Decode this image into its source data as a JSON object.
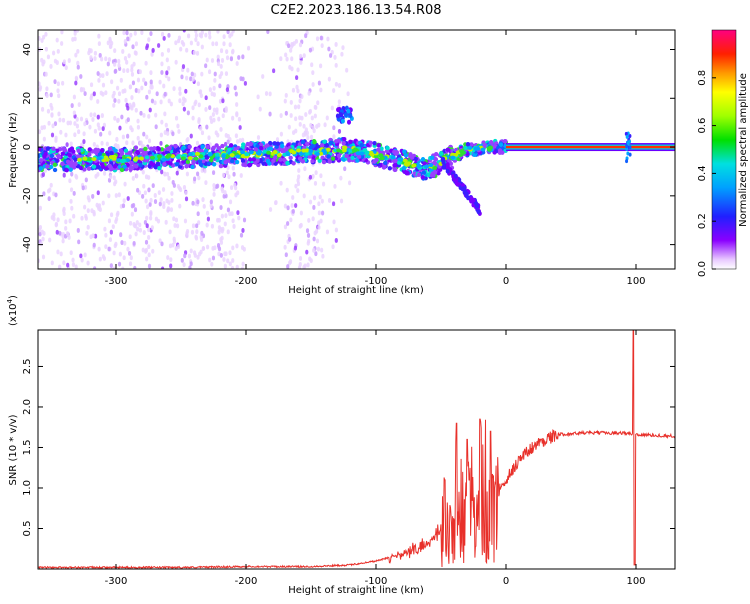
{
  "title": "C2E2.2023.186.13.54.R08",
  "chart_data": [
    {
      "type": "heatmap",
      "xlabel": "Height of straight line (km)",
      "ylabel": "Frequency (Hz)",
      "xlim": [
        -360,
        130
      ],
      "ylim": [
        -50,
        48
      ],
      "xticks": [
        -300,
        -200,
        -100,
        0,
        100
      ],
      "xtick_labels": [
        "-300",
        "-200",
        "-100",
        "0",
        "100"
      ],
      "yticks": [
        -40,
        -20,
        0,
        20,
        40
      ],
      "ytick_labels": [
        "-40",
        "-20",
        "0",
        "20",
        "40"
      ],
      "colorbar": {
        "label": "Normalized spectral amplitude",
        "range": [
          0,
          1
        ],
        "ticks": [
          0.0,
          0.2,
          0.4,
          0.6,
          0.8
        ],
        "tick_labels": [
          "0.0",
          "0.2",
          "0.4",
          "0.6",
          "0.8"
        ],
        "colormap": "rainbow"
      },
      "ridge": [
        {
          "x": -360,
          "y": -5
        },
        {
          "x": -300,
          "y": -5
        },
        {
          "x": -250,
          "y": -4
        },
        {
          "x": -200,
          "y": -3
        },
        {
          "x": -150,
          "y": -2
        },
        {
          "x": -120,
          "y": -1
        },
        {
          "x": -100,
          "y": -3
        },
        {
          "x": -80,
          "y": -6
        },
        {
          "x": -60,
          "y": -9
        },
        {
          "x": -45,
          "y": -5
        },
        {
          "x": -30,
          "y": -1
        },
        {
          "x": -10,
          "y": 0
        },
        {
          "x": 0,
          "y": 0
        },
        {
          "x": 130,
          "y": 0
        }
      ]
    },
    {
      "type": "line",
      "xlabel": "Height of straight line (km)",
      "ylabel": "SNR (10 * v/v)",
      "multiplier": "(x10",
      "multiplier_exp": "4",
      "multiplier_close": ")",
      "xlim": [
        -360,
        130
      ],
      "ylim": [
        0,
        2.95
      ],
      "xticks": [
        -300,
        -200,
        -100,
        0,
        100
      ],
      "xtick_labels": [
        "-300",
        "-200",
        "-100",
        "0",
        "100"
      ],
      "yticks": [
        0.5,
        1.0,
        1.5,
        2.0,
        2.5
      ],
      "ytick_labels": [
        "0.5",
        "1.0",
        "1.5",
        "2.0",
        "2.5"
      ],
      "color": "#e8302a",
      "series": [
        {
          "envelope": [
            {
              "x": -360,
              "y": 0.02
            },
            {
              "x": -250,
              "y": 0.02
            },
            {
              "x": -200,
              "y": 0.03
            },
            {
              "x": -150,
              "y": 0.03
            },
            {
              "x": -120,
              "y": 0.05
            },
            {
              "x": -100,
              "y": 0.1
            },
            {
              "x": -80,
              "y": 0.18
            },
            {
              "x": -60,
              "y": 0.3
            },
            {
              "x": -45,
              "y": 0.6
            },
            {
              "x": -30,
              "y": 0.8
            },
            {
              "x": -15,
              "y": 0.95
            },
            {
              "x": 0,
              "y": 1.1
            },
            {
              "x": 10,
              "y": 1.35
            },
            {
              "x": 20,
              "y": 1.5
            },
            {
              "x": 30,
              "y": 1.6
            },
            {
              "x": 40,
              "y": 1.66
            },
            {
              "x": 60,
              "y": 1.68
            },
            {
              "x": 90,
              "y": 1.68
            },
            {
              "x": 100,
              "y": 1.66
            },
            {
              "x": 130,
              "y": 1.64
            }
          ],
          "peaks": [
            {
              "x": -47,
              "y": 1.1
            },
            {
              "x": -38,
              "y": 1.8
            },
            {
              "x": -30,
              "y": 1.6
            },
            {
              "x": -20,
              "y": 1.85
            },
            {
              "x": -12,
              "y": 1.7
            },
            {
              "x": 98,
              "y": 2.95
            },
            {
              "x": 99,
              "y": 0.05
            }
          ]
        }
      ]
    }
  ]
}
